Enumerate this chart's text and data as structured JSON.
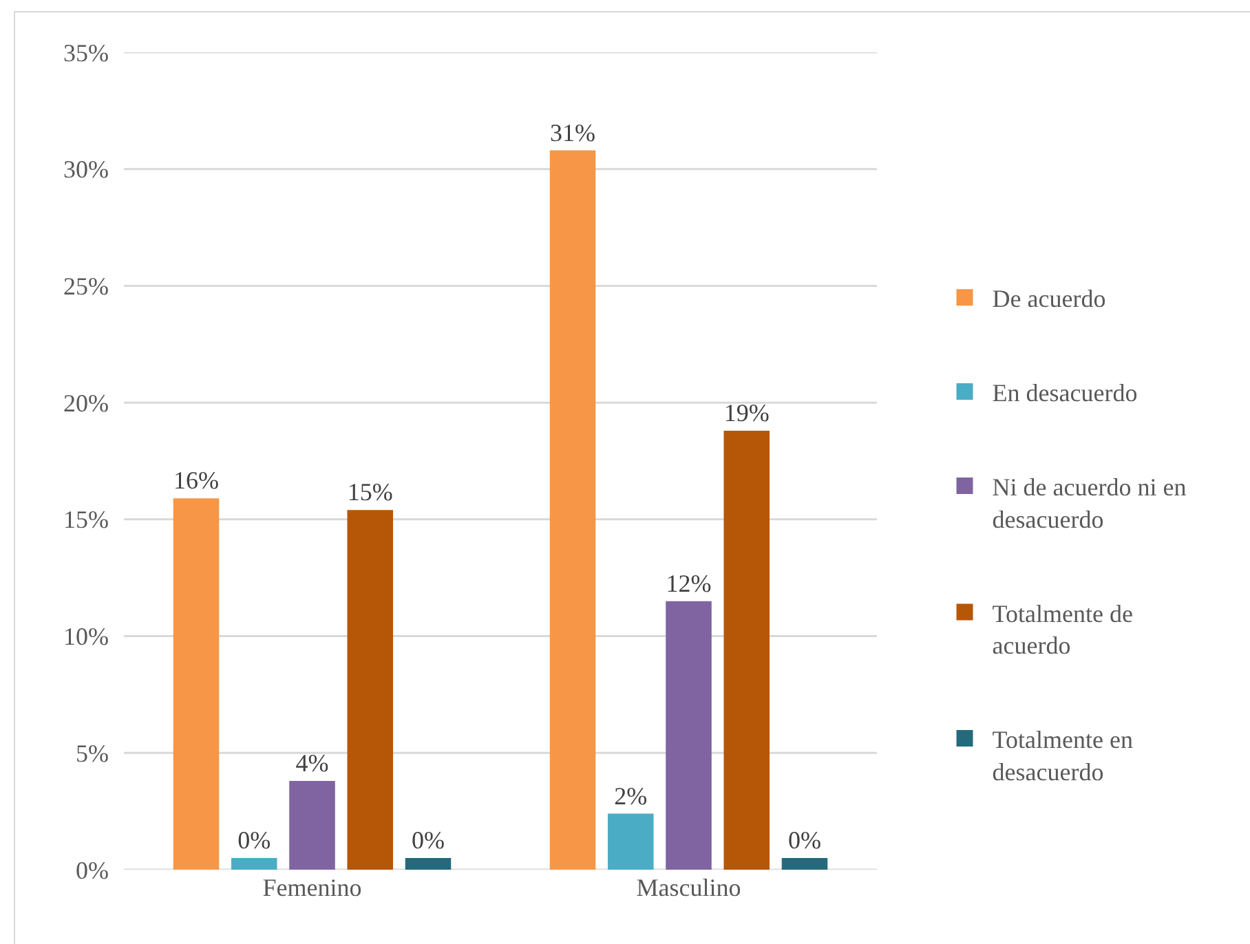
{
  "chart_data": {
    "type": "bar",
    "categories": [
      "Femenino",
      "Masculino"
    ],
    "series": [
      {
        "name": "De acuerdo",
        "color": "#f79646",
        "values": [
          15.9,
          30.8
        ],
        "value_labels": [
          "16%",
          "31%"
        ]
      },
      {
        "name": "En desacuerdo",
        "color": "#4bacc6",
        "values": [
          0.5,
          2.4
        ],
        "value_labels": [
          "0%",
          "2%"
        ]
      },
      {
        "name": "Ni de acuerdo ni en desacuerdo",
        "color": "#8064a2",
        "values": [
          3.8,
          11.5
        ],
        "value_labels": [
          "4%",
          "12%"
        ]
      },
      {
        "name": "Totalmente de acuerdo",
        "color": "#b65708",
        "values": [
          15.4,
          18.8
        ],
        "value_labels": [
          "15%",
          "19%"
        ]
      },
      {
        "name": "Totalmente en desacuerdo",
        "color": "#256a7c",
        "values": [
          0.5,
          0.5
        ],
        "value_labels": [
          "0%",
          "0%"
        ]
      }
    ],
    "ylim": [
      0,
      35
    ],
    "yticks": [
      {
        "value": 0,
        "label": "0%"
      },
      {
        "value": 5,
        "label": "5%"
      },
      {
        "value": 10,
        "label": "10%"
      },
      {
        "value": 15,
        "label": "15%"
      },
      {
        "value": 20,
        "label": "20%"
      },
      {
        "value": 25,
        "label": "25%"
      },
      {
        "value": 30,
        "label": "30%"
      },
      {
        "value": 35,
        "label": "35%"
      }
    ],
    "grid": "y",
    "legend": "right"
  }
}
